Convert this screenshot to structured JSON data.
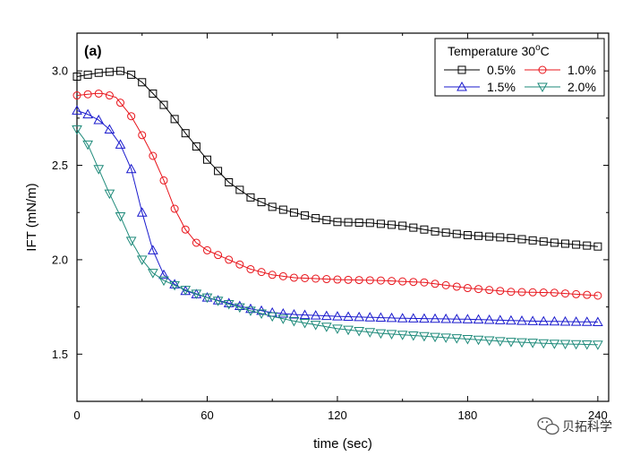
{
  "chart_data": {
    "type": "scatter",
    "panel_label": "(a)",
    "xlabel": "time (sec)",
    "ylabel": "IFT (mN/m)",
    "xlim": [
      0,
      245
    ],
    "ylim": [
      1.25,
      3.2
    ],
    "xticks": [
      0,
      60,
      120,
      180,
      240
    ],
    "yticks": [
      1.5,
      2.0,
      2.5,
      3.0
    ],
    "xtick_labels": [
      "0",
      "60",
      "120",
      "180",
      "240"
    ],
    "ytick_labels": [
      "1.5",
      "2.0",
      "2.5",
      "3.0"
    ],
    "legend": {
      "title_prefix": "Temperature 30",
      "title_sup": "o",
      "title_suffix": "C",
      "placement": "top-right"
    },
    "series": [
      {
        "name": "0.5%",
        "marker": "square",
        "color": "#000000",
        "keypoints": [
          [
            0,
            2.97
          ],
          [
            10,
            2.99
          ],
          [
            20,
            3.0
          ],
          [
            25,
            2.98
          ],
          [
            30,
            2.94
          ],
          [
            40,
            2.82
          ],
          [
            50,
            2.67
          ],
          [
            60,
            2.53
          ],
          [
            70,
            2.41
          ],
          [
            80,
            2.33
          ],
          [
            90,
            2.28
          ],
          [
            100,
            2.25
          ],
          [
            110,
            2.22
          ],
          [
            120,
            2.2
          ],
          [
            135,
            2.195
          ],
          [
            150,
            2.18
          ],
          [
            165,
            2.15
          ],
          [
            180,
            2.13
          ],
          [
            200,
            2.115
          ],
          [
            220,
            2.09
          ],
          [
            240,
            2.07
          ]
        ]
      },
      {
        "name": "1.0%",
        "marker": "circle",
        "color": "#e8141b",
        "keypoints": [
          [
            0,
            2.87
          ],
          [
            8,
            2.88
          ],
          [
            12,
            2.88
          ],
          [
            18,
            2.86
          ],
          [
            25,
            2.76
          ],
          [
            30,
            2.66
          ],
          [
            35,
            2.55
          ],
          [
            40,
            2.42
          ],
          [
            45,
            2.27
          ],
          [
            50,
            2.16
          ],
          [
            55,
            2.09
          ],
          [
            60,
            2.05
          ],
          [
            70,
            2.0
          ],
          [
            80,
            1.95
          ],
          [
            90,
            1.92
          ],
          [
            100,
            1.905
          ],
          [
            120,
            1.895
          ],
          [
            140,
            1.89
          ],
          [
            160,
            1.88
          ],
          [
            180,
            1.85
          ],
          [
            200,
            1.83
          ],
          [
            220,
            1.825
          ],
          [
            240,
            1.81
          ]
        ]
      },
      {
        "name": "1.5%",
        "marker": "triangle-up",
        "color": "#1a1acd",
        "keypoints": [
          [
            0,
            2.79
          ],
          [
            5,
            2.77
          ],
          [
            10,
            2.74
          ],
          [
            15,
            2.69
          ],
          [
            20,
            2.61
          ],
          [
            25,
            2.48
          ],
          [
            30,
            2.25
          ],
          [
            35,
            2.05
          ],
          [
            40,
            1.92
          ],
          [
            45,
            1.87
          ],
          [
            50,
            1.835
          ],
          [
            60,
            1.8
          ],
          [
            70,
            1.77
          ],
          [
            80,
            1.74
          ],
          [
            90,
            1.72
          ],
          [
            100,
            1.71
          ],
          [
            120,
            1.7
          ],
          [
            150,
            1.69
          ],
          [
            180,
            1.685
          ],
          [
            210,
            1.675
          ],
          [
            240,
            1.67
          ]
        ]
      },
      {
        "name": "2.0%",
        "marker": "triangle-down",
        "color": "#1e8a7a",
        "keypoints": [
          [
            0,
            2.69
          ],
          [
            5,
            2.61
          ],
          [
            10,
            2.48
          ],
          [
            15,
            2.35
          ],
          [
            20,
            2.23
          ],
          [
            25,
            2.1
          ],
          [
            30,
            2.0
          ],
          [
            35,
            1.93
          ],
          [
            40,
            1.89
          ],
          [
            50,
            1.84
          ],
          [
            60,
            1.8
          ],
          [
            70,
            1.765
          ],
          [
            80,
            1.73
          ],
          [
            90,
            1.7
          ],
          [
            100,
            1.675
          ],
          [
            120,
            1.635
          ],
          [
            140,
            1.61
          ],
          [
            160,
            1.595
          ],
          [
            180,
            1.58
          ],
          [
            200,
            1.565
          ],
          [
            220,
            1.555
          ],
          [
            240,
            1.55
          ]
        ]
      }
    ]
  },
  "watermark": {
    "icon": "wechat-icon",
    "text": "贝拓科学"
  }
}
